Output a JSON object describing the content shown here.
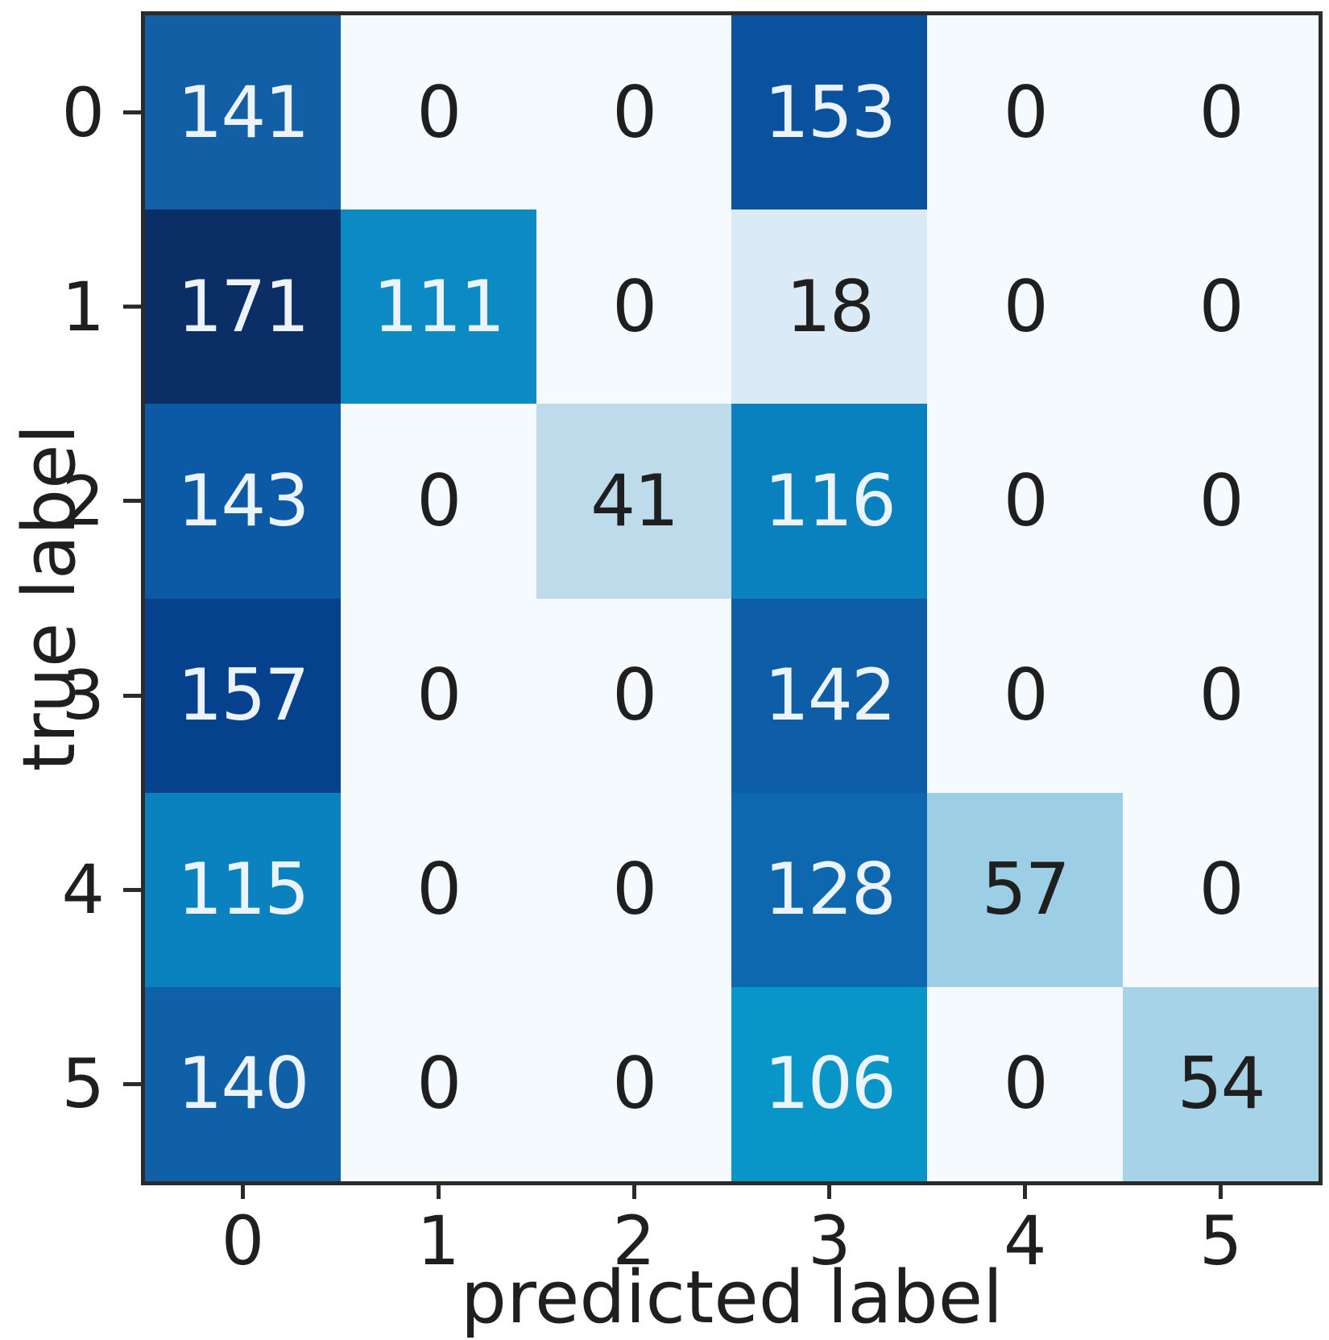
{
  "chart_data": {
    "type": "heatmap",
    "title": "",
    "xlabel": "predicted label",
    "ylabel": "true label",
    "colormap": "Blues",
    "vmin": 0,
    "vmax": 171,
    "grid": false,
    "x_tick_labels": [
      "0",
      "1",
      "2",
      "3",
      "4",
      "5"
    ],
    "y_tick_labels": [
      "0",
      "1",
      "2",
      "3",
      "4",
      "5"
    ],
    "matrix": [
      [
        141,
        0,
        0,
        153,
        0,
        0
      ],
      [
        171,
        111,
        0,
        18,
        0,
        0
      ],
      [
        143,
        0,
        41,
        116,
        0,
        0
      ],
      [
        157,
        0,
        0,
        142,
        0,
        0
      ],
      [
        115,
        0,
        0,
        128,
        57,
        0
      ],
      [
        140,
        0,
        0,
        106,
        0,
        54
      ]
    ],
    "cell_colors": [
      [
        "#125fa5",
        "#f5fafe",
        "#f5fafe",
        "#0a519e",
        "#f5fafe",
        "#f5fafe"
      ],
      [
        "#0b2e67",
        "#0b8ac4",
        "#f5fafe",
        "#daeaf6",
        "#f5fafe",
        "#f5fafe"
      ],
      [
        "#0c5aa6",
        "#f5fafe",
        "#bedbec",
        "#0a81bf",
        "#f5fafe",
        "#f5fafe"
      ],
      [
        "#05418c",
        "#f5fafe",
        "#f5fafe",
        "#0e5da7",
        "#f5fafe",
        "#f5fafe"
      ],
      [
        "#0a82c0",
        "#f5fafe",
        "#f5fafe",
        "#0d68af",
        "#9ccee6",
        "#f5fafe"
      ],
      [
        "#0f60a6",
        "#f5fafe",
        "#f5fafe",
        "#0896c8",
        "#f5fafe",
        "#a7d3e8"
      ]
    ],
    "value_text_light": "#edf3fa",
    "value_text_dark": "#1f1f1f",
    "light_text_threshold": 86,
    "axis_color": "#2b2b2b"
  }
}
